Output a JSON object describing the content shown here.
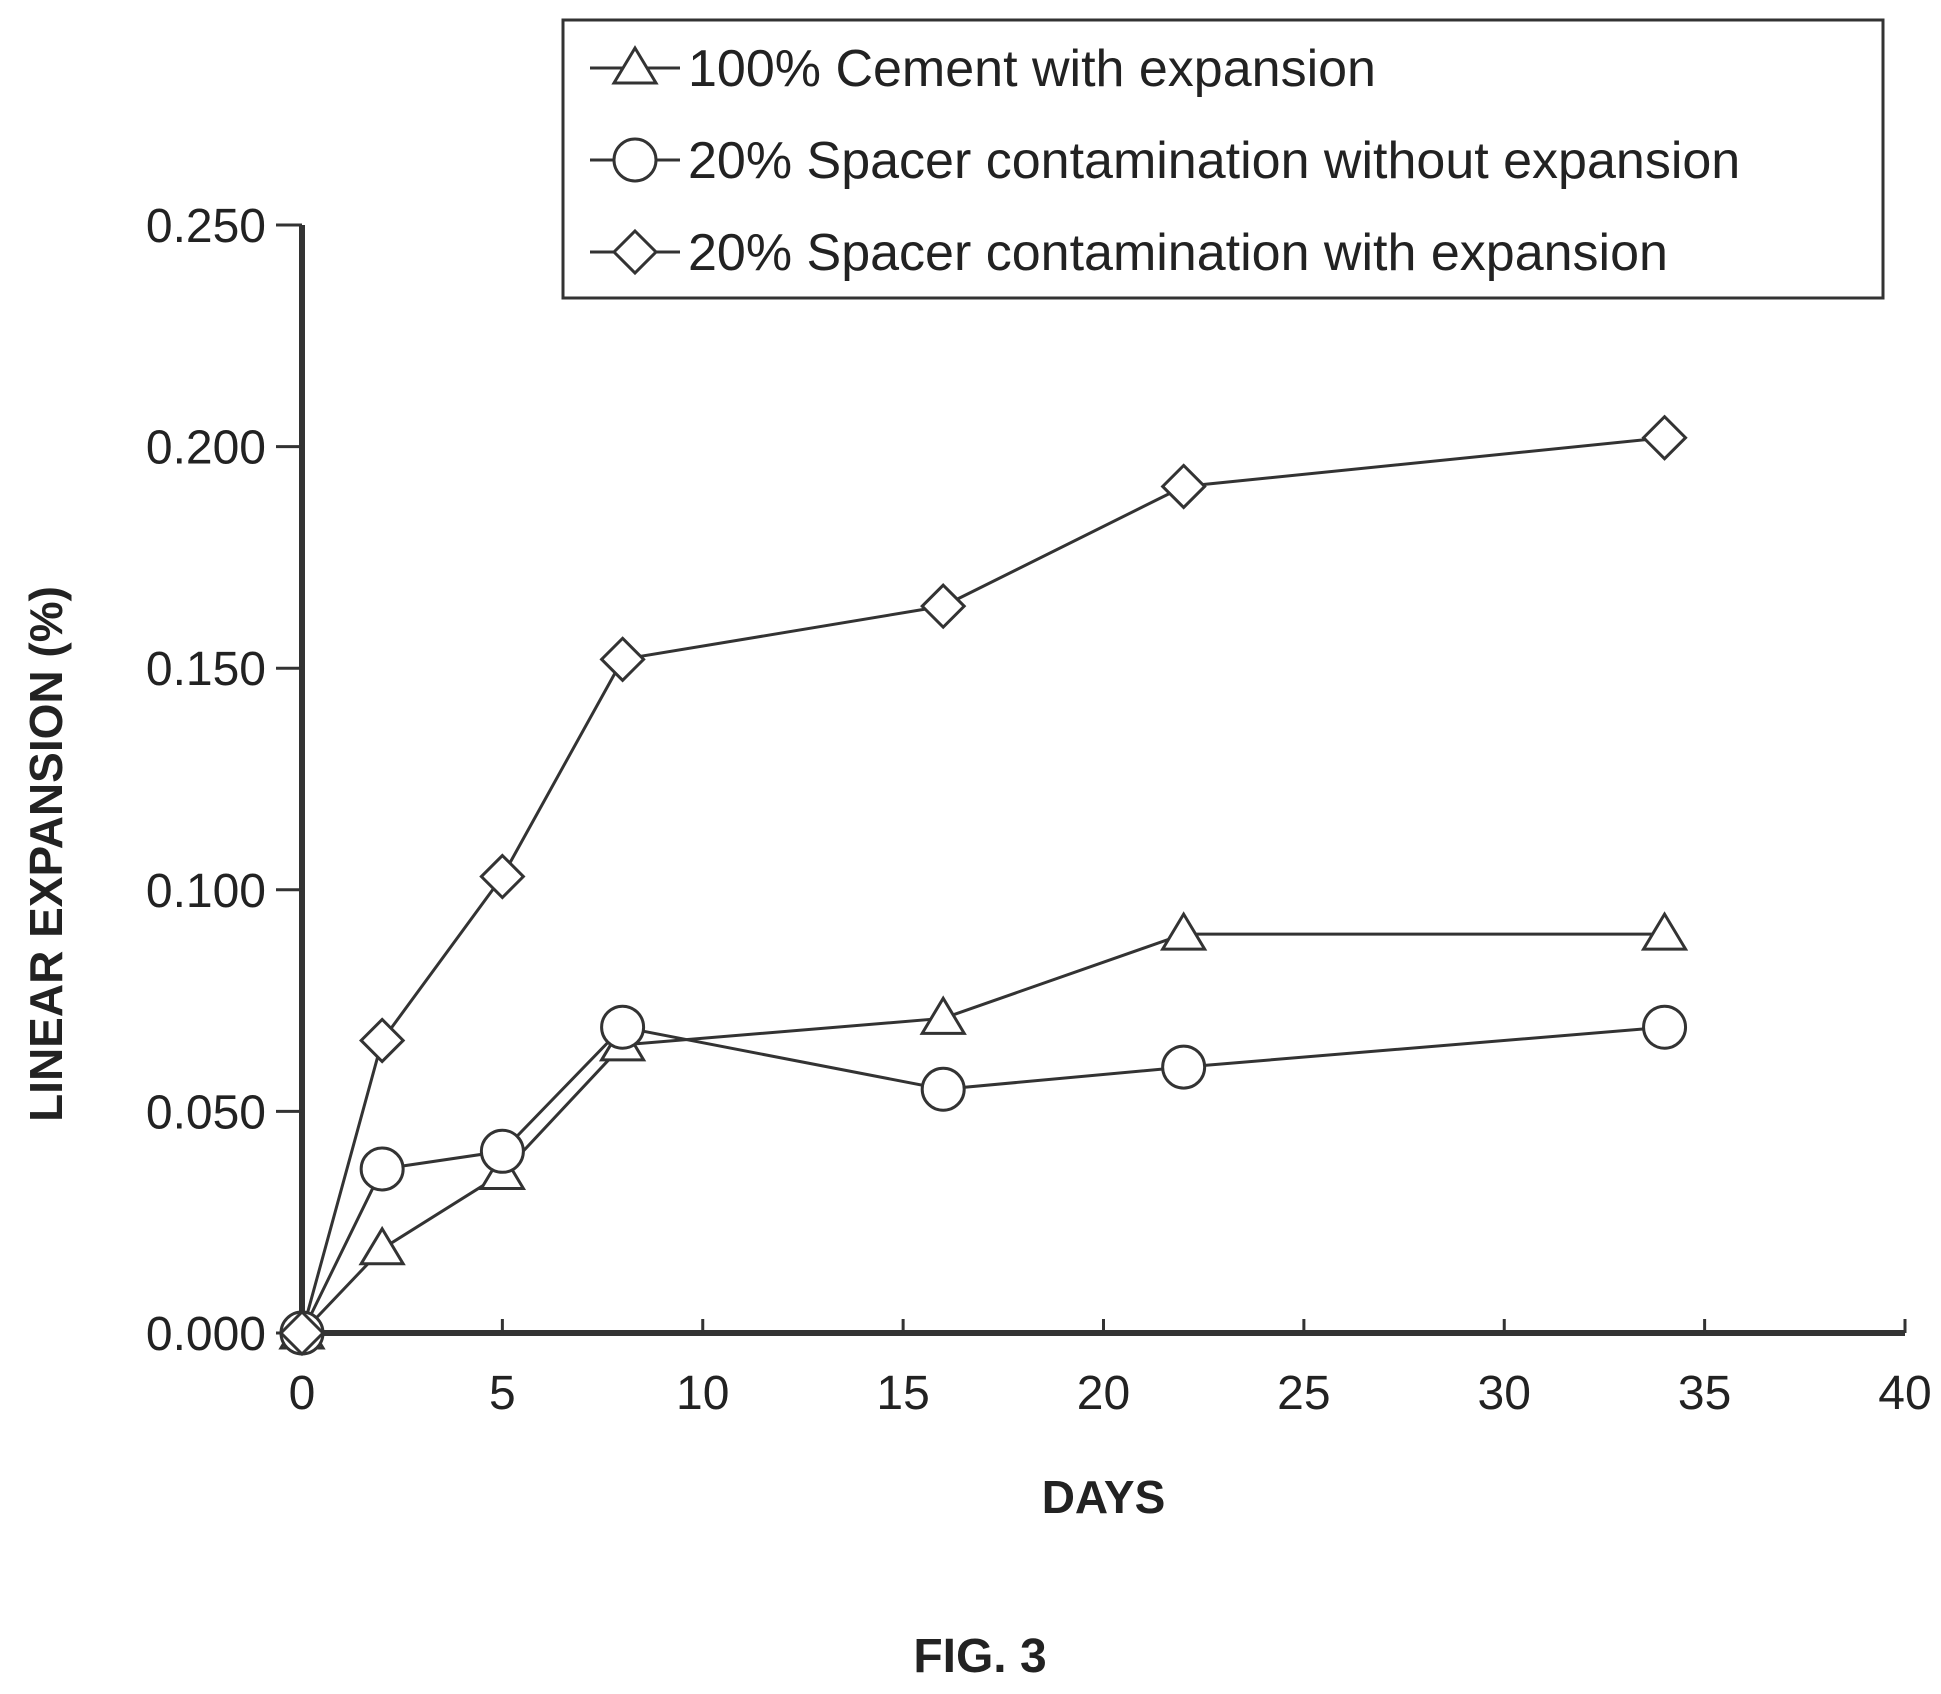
{
  "chart_data": {
    "type": "line",
    "title": "",
    "xlabel": "DAYS",
    "ylabel": "LINEAR EXPANSION (%)",
    "xlim": [
      0,
      40
    ],
    "ylim": [
      0,
      0.25
    ],
    "x_ticks": [
      "0",
      "5",
      "10",
      "15",
      "20",
      "25",
      "30",
      "35",
      "40"
    ],
    "y_ticks": [
      "0.000",
      "0.050",
      "0.100",
      "0.150",
      "0.200",
      "0.250"
    ],
    "grid": false,
    "legend_position": "top-right",
    "series": [
      {
        "name": "100% Cement with expansion",
        "marker": "triangle",
        "x": [
          0,
          2,
          5,
          8,
          16,
          22,
          34
        ],
        "y": [
          0.0,
          0.019,
          0.036,
          0.065,
          0.071,
          0.09,
          0.09
        ]
      },
      {
        "name": "20% Spacer contamination without expansion",
        "marker": "circle",
        "x": [
          0,
          2,
          5,
          8,
          16,
          22,
          34
        ],
        "y": [
          0.0,
          0.037,
          0.041,
          0.069,
          0.055,
          0.06,
          0.069
        ]
      },
      {
        "name": "20% Spacer contamination with expansion",
        "marker": "diamond",
        "x": [
          0,
          2,
          5,
          8,
          16,
          22,
          34
        ],
        "y": [
          0.0,
          0.066,
          0.103,
          0.152,
          0.164,
          0.191,
          0.202
        ]
      }
    ]
  },
  "caption": "FIG. 3"
}
